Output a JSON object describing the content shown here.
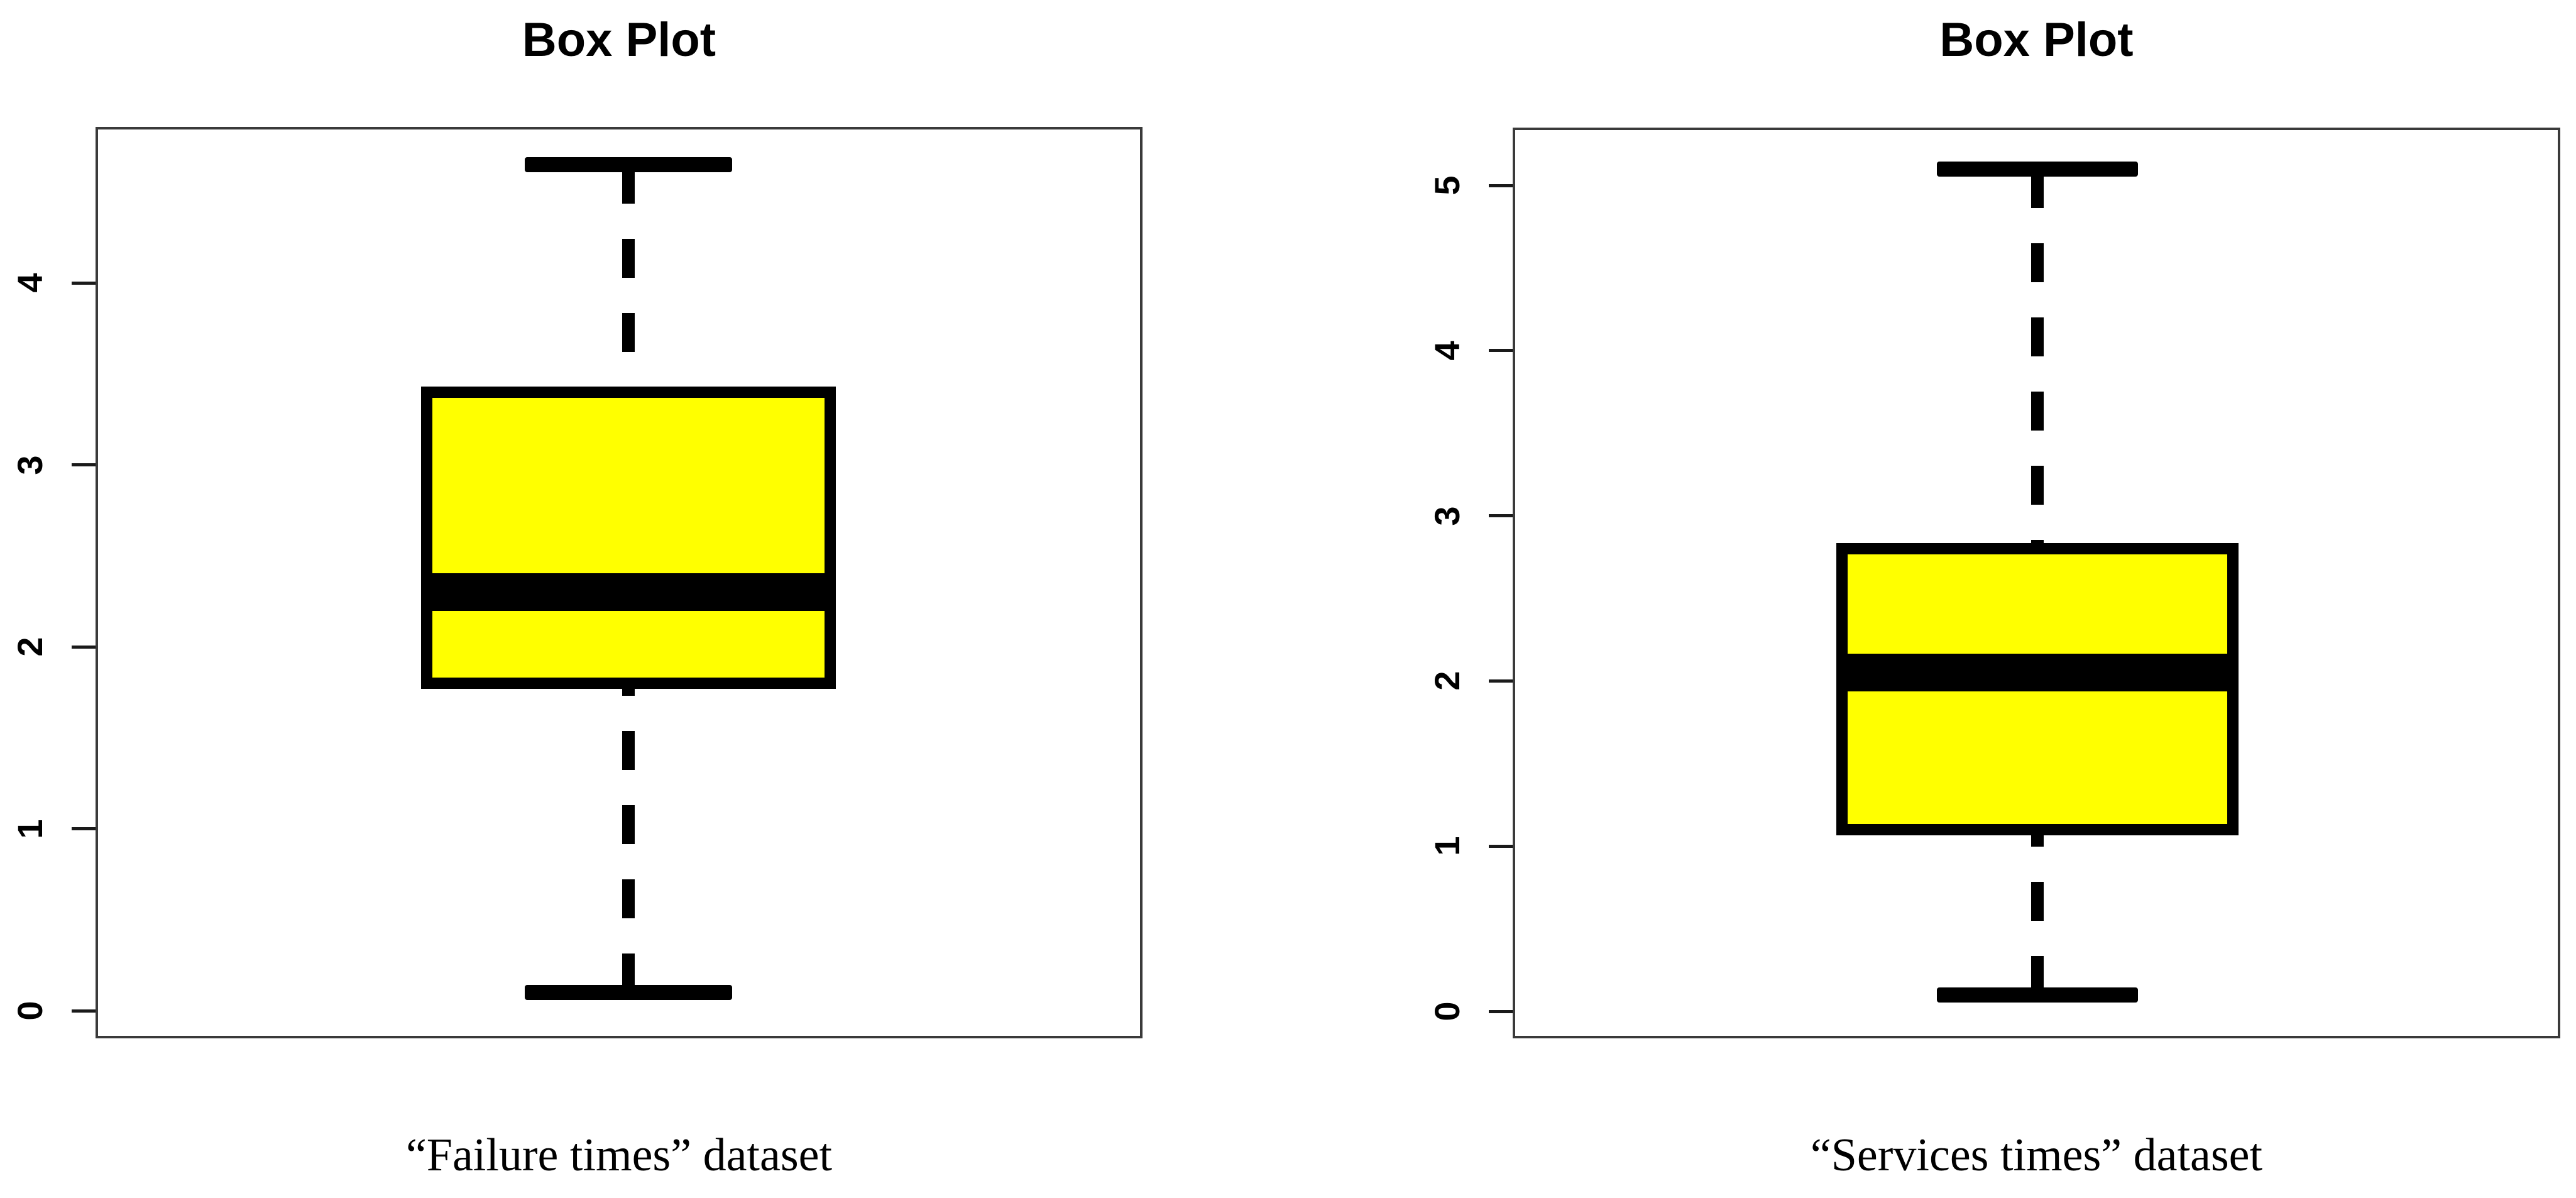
{
  "figure": {
    "background": "#ffffff"
  },
  "chart_data": [
    {
      "type": "box",
      "title": "Box Plot",
      "caption": "“Failure times” dataset",
      "dataset_name": "Failure times",
      "orientation": "vertical",
      "xlabel": "",
      "ylabel": "",
      "y_ticks": [
        0,
        1,
        2,
        3,
        4
      ],
      "ylim": [
        -0.15,
        4.86
      ],
      "grid": false,
      "legend": null,
      "box_fill": "#ffff00",
      "line_color": "#000000",
      "whisker_linestyle": "dashed",
      "stats": {
        "whisker_low": 0.1,
        "q1": 1.8,
        "median": 2.3,
        "q3": 3.4,
        "whisker_high": 4.65
      },
      "outliers": []
    },
    {
      "type": "box",
      "title": "Box Plot",
      "caption": "“Services times” dataset",
      "dataset_name": "Services times",
      "orientation": "vertical",
      "xlabel": "",
      "ylabel": "",
      "y_ticks": [
        0,
        1,
        2,
        3,
        4,
        5
      ],
      "ylim": [
        -0.16,
        5.35
      ],
      "grid": false,
      "legend": null,
      "box_fill": "#ffff00",
      "line_color": "#000000",
      "whisker_linestyle": "dashed",
      "stats": {
        "whisker_low": 0.1,
        "q1": 1.1,
        "median": 2.05,
        "q3": 2.8,
        "whisker_high": 5.1
      },
      "outliers": []
    }
  ]
}
